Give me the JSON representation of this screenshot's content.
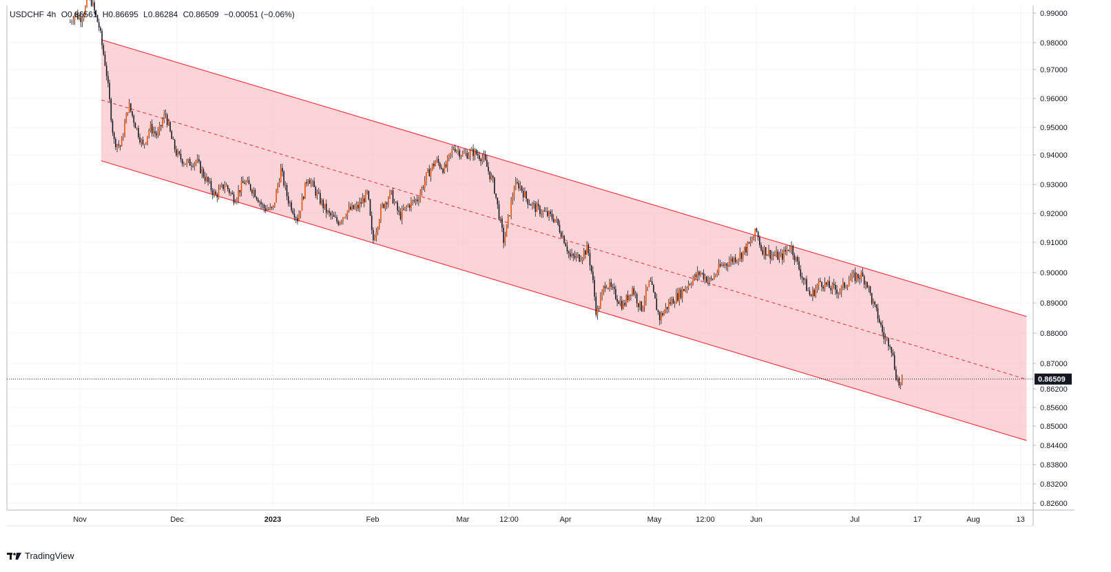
{
  "legend": {
    "symbol": "USDCHF",
    "interval": "4h",
    "open": "O0.86561",
    "high": "H0.86695",
    "low": "L0.86284",
    "close": "C0.86509",
    "change": "−0.00051 (−0.06%)"
  },
  "footer": {
    "brand": "TradingView",
    "logo_icon": "tradingview-logo-icon"
  },
  "colors": {
    "candle_up": "#e65100",
    "candle_down": "#131722",
    "channel_line": "#f23645",
    "channel_fill": "#f8c8cc",
    "grid": "#f0f3fa",
    "price_label_bg": "#131722"
  },
  "chart_data": {
    "type": "candlestick-line",
    "title": "USDCHF, 4h",
    "xlabel": "",
    "ylabel": "",
    "x_axis": {
      "unit": "months since 2022-11-01",
      "range": [
        -0.55,
        9.8
      ],
      "tick_labels": [
        {
          "x": 0,
          "label": "Nov",
          "bold": false
        },
        {
          "x": 1,
          "label": "Dec",
          "bold": false
        },
        {
          "x": 2,
          "label": "2023",
          "bold": true
        },
        {
          "x": 3,
          "label": "Feb",
          "bold": false
        },
        {
          "x": 4,
          "label": "Mar",
          "bold": false
        },
        {
          "x": 4.45,
          "label": "12:00",
          "bold": false
        },
        {
          "x": 5,
          "label": "Apr",
          "bold": false
        },
        {
          "x": 6,
          "label": "May",
          "bold": false
        },
        {
          "x": 6.5,
          "label": "12:00",
          "bold": false
        },
        {
          "x": 7,
          "label": "Jun",
          "bold": false
        },
        {
          "x": 8,
          "label": "Jul",
          "bold": false
        },
        {
          "x": 8.53,
          "label": "17",
          "bold": false
        },
        {
          "x": 9,
          "label": "Aug",
          "bold": false
        },
        {
          "x": 9.4,
          "label": "13",
          "bold": false
        }
      ]
    },
    "y_axis": {
      "labels": [
        {
          "value": 0.99,
          "label": "0.99000"
        },
        {
          "value": 0.98,
          "label": "0.98000"
        },
        {
          "value": 0.97,
          "label": "0.97000"
        },
        {
          "value": 0.96,
          "label": "0.96000"
        },
        {
          "value": 0.95,
          "label": "0.95000"
        },
        {
          "value": 0.94,
          "label": "0.94000"
        },
        {
          "value": 0.93,
          "label": "0.93000"
        },
        {
          "value": 0.92,
          "label": "0.92000"
        },
        {
          "value": 0.91,
          "label": "0.91000"
        },
        {
          "value": 0.9,
          "label": "0.90000"
        },
        {
          "value": 0.89,
          "label": "0.89000"
        },
        {
          "value": 0.88,
          "label": "0.88000"
        },
        {
          "value": 0.87,
          "label": "0.87000"
        },
        {
          "value": 0.862,
          "label": "0.86200"
        },
        {
          "value": 0.856,
          "label": "0.85600"
        },
        {
          "value": 0.85,
          "label": "0.85000"
        },
        {
          "value": 0.844,
          "label": "0.84400"
        },
        {
          "value": 0.838,
          "label": "0.83800"
        },
        {
          "value": 0.832,
          "label": "0.83200"
        },
        {
          "value": 0.826,
          "label": "0.82600"
        }
      ]
    },
    "last_price": {
      "value": 0.86509,
      "label": "0.86509"
    },
    "channel": {
      "upper": {
        "x": [
          0.22,
          9.45
        ],
        "y": [
          0.981,
          0.8855
        ]
      },
      "lower": {
        "x": [
          0.22,
          9.45
        ],
        "y": [
          0.938,
          0.8455
        ]
      },
      "middle": {
        "x": [
          0.22,
          9.45
        ],
        "y": [
          0.9595,
          0.865
        ]
      }
    },
    "series": [
      {
        "name": "USDCHF close (approx.)",
        "x": [
          -0.1,
          -0.05,
          0.0,
          0.05,
          0.1,
          0.2,
          0.27,
          0.35,
          0.42,
          0.5,
          0.58,
          0.65,
          0.72,
          0.8,
          0.88,
          0.95,
          1.0,
          1.1,
          1.2,
          1.3,
          1.4,
          1.5,
          1.6,
          1.7,
          1.8,
          1.9,
          2.0,
          2.08,
          2.15,
          2.25,
          2.35,
          2.45,
          2.55,
          2.65,
          2.75,
          2.85,
          2.95,
          3.0,
          3.1,
          3.2,
          3.3,
          3.4,
          3.5,
          3.6,
          3.7,
          3.8,
          3.9,
          4.0,
          4.1,
          4.2,
          4.3,
          4.35,
          4.4,
          4.5,
          4.55,
          4.62,
          4.7,
          4.8,
          4.9,
          5.0,
          5.05,
          5.15,
          5.25,
          5.3,
          5.35,
          5.45,
          5.55,
          5.65,
          5.75,
          5.85,
          5.95,
          6.05,
          6.15,
          6.25,
          6.35,
          6.45,
          6.55,
          6.65,
          6.75,
          6.85,
          6.95,
          7.0,
          7.05,
          7.15,
          7.25,
          7.35,
          7.45,
          7.55,
          7.65,
          7.75,
          7.85,
          7.95,
          8.05,
          8.1,
          8.15,
          8.2,
          8.25,
          8.3,
          8.35,
          8.38,
          8.41
        ],
        "y": [
          0.987,
          0.99,
          0.988,
          0.991,
          0.996,
          0.985,
          0.97,
          0.945,
          0.943,
          0.958,
          0.95,
          0.943,
          0.95,
          0.947,
          0.955,
          0.945,
          0.94,
          0.937,
          0.938,
          0.932,
          0.926,
          0.93,
          0.925,
          0.931,
          0.928,
          0.922,
          0.921,
          0.935,
          0.925,
          0.918,
          0.933,
          0.926,
          0.92,
          0.917,
          0.921,
          0.922,
          0.927,
          0.91,
          0.922,
          0.927,
          0.919,
          0.923,
          0.925,
          0.933,
          0.938,
          0.935,
          0.943,
          0.94,
          0.941,
          0.939,
          0.93,
          0.92,
          0.91,
          0.929,
          0.93,
          0.925,
          0.922,
          0.92,
          0.918,
          0.91,
          0.905,
          0.905,
          0.908,
          0.899,
          0.886,
          0.897,
          0.893,
          0.889,
          0.895,
          0.888,
          0.897,
          0.885,
          0.89,
          0.893,
          0.897,
          0.9,
          0.897,
          0.902,
          0.904,
          0.906,
          0.91,
          0.914,
          0.908,
          0.906,
          0.905,
          0.909,
          0.9,
          0.892,
          0.897,
          0.895,
          0.894,
          0.898,
          0.899,
          0.897,
          0.89,
          0.885,
          0.878,
          0.877,
          0.866,
          0.863,
          0.865
        ]
      }
    ]
  }
}
